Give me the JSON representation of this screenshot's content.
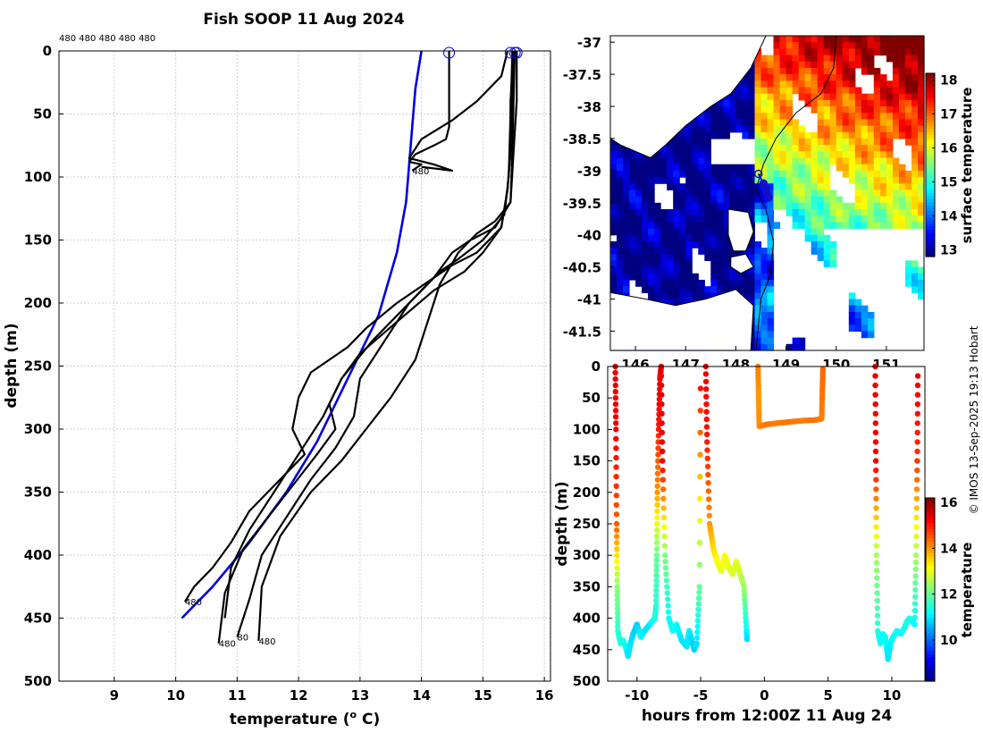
{
  "title": "Fish SOOP 11 Aug 2024",
  "credit": "© IMOS 13-Sep-2025 19:13 Hobart",
  "colors": {
    "profile": "#000000",
    "climatology": "#0000dd",
    "grid": "#d0d0d0",
    "land": "#ffffff",
    "track": "#1010cc"
  },
  "chart_data": [
    {
      "type": "line",
      "name": "temperature-profiles",
      "xlabel": "temperature (° C)",
      "xlabel_main": "temperature (",
      "xlabel_sup": "o",
      "xlabel_tail": " C)",
      "ylabel": "depth (m)",
      "xlim": [
        8.1,
        16.1
      ],
      "ylim": [
        500,
        0
      ],
      "xticks": [
        9,
        10,
        11,
        12,
        13,
        14,
        15,
        16
      ],
      "yticks": [
        0,
        50,
        100,
        150,
        200,
        250,
        300,
        350,
        400,
        450,
        500
      ],
      "top_label": "480 480 480 480 480",
      "drop_labels": [
        {
          "text": "480",
          "t": 13.85,
          "d": 95
        },
        {
          "text": "480",
          "t": 10.15,
          "d": 437
        },
        {
          "text": "480",
          "t": 10.7,
          "d": 470
        },
        {
          "text": "80",
          "t": 11.0,
          "d": 465
        },
        {
          "text": "480",
          "t": 11.35,
          "d": 468
        }
      ],
      "surface_markers": [
        14.45,
        15.45,
        15.52,
        15.55
      ],
      "series": [
        {
          "name": "climatology",
          "t": [
            14.0,
            13.9,
            13.85,
            13.8,
            13.75,
            13.6,
            13.3,
            12.8,
            12.3,
            11.8,
            11.2,
            10.6,
            10.1
          ],
          "d": [
            0,
            30,
            60,
            90,
            120,
            160,
            210,
            260,
            310,
            350,
            390,
            425,
            450
          ]
        },
        {
          "name": "drop-1",
          "t": [
            14.45,
            14.45,
            14.45,
            14.45,
            14.4,
            14.2,
            13.9,
            13.8,
            14.0,
            13.85
          ],
          "d": [
            0,
            20,
            40,
            60,
            70,
            75,
            82,
            88,
            90,
            95
          ]
        },
        {
          "name": "drop-2",
          "t": [
            15.4,
            15.3,
            14.9,
            14.5,
            14.0,
            13.8,
            14.2,
            14.5,
            14.0
          ],
          "d": [
            0,
            20,
            40,
            55,
            70,
            85,
            90,
            95,
            92
          ]
        },
        {
          "name": "drop-3",
          "t": [
            15.5,
            15.45,
            15.45,
            15.4,
            15.3,
            14.9,
            14.5,
            14.2,
            13.6,
            13.1,
            12.8,
            12.2,
            12.0,
            11.9,
            12.1,
            11.6,
            11.2,
            10.9,
            10.6,
            10.3,
            10.15
          ],
          "d": [
            0,
            40,
            80,
            110,
            140,
            160,
            170,
            180,
            200,
            220,
            235,
            255,
            275,
            300,
            320,
            345,
            365,
            390,
            410,
            425,
            437
          ]
        },
        {
          "name": "drop-4",
          "t": [
            15.5,
            15.48,
            15.45,
            15.4,
            15.3,
            15.0,
            14.7,
            14.2,
            13.6,
            13.0,
            12.7,
            12.5,
            12.6,
            12.3,
            11.9,
            11.5,
            11.1,
            10.8,
            10.7
          ],
          "d": [
            0,
            40,
            80,
            110,
            140,
            160,
            175,
            190,
            215,
            240,
            260,
            280,
            300,
            320,
            345,
            370,
            395,
            430,
            470
          ]
        },
        {
          "name": "drop-5",
          "t": [
            15.52,
            15.5,
            15.48,
            15.45,
            15.2,
            14.8,
            14.5,
            14.2,
            13.8,
            13.4,
            13.0,
            12.9,
            12.6,
            12.2,
            11.8,
            11.4,
            11.2,
            11.0
          ],
          "d": [
            0,
            40,
            80,
            120,
            140,
            150,
            160,
            180,
            200,
            230,
            260,
            290,
            315,
            340,
            370,
            400,
            435,
            465
          ]
        },
        {
          "name": "drop-6",
          "t": [
            15.55,
            15.55,
            15.5,
            15.45,
            15.2,
            14.9,
            14.6,
            14.3,
            14.1,
            13.9,
            13.5,
            13.1,
            12.7,
            12.2,
            11.7,
            11.4,
            11.35
          ],
          "d": [
            0,
            40,
            80,
            120,
            135,
            145,
            160,
            185,
            215,
            245,
            275,
            300,
            325,
            350,
            385,
            425,
            468
          ]
        },
        {
          "name": "drop-7",
          "t": [
            15.48,
            15.45,
            15.42,
            15.35,
            15.0,
            14.6,
            14.3,
            13.8,
            13.2,
            12.7,
            12.4,
            12.0,
            11.6,
            11.2,
            10.9,
            10.8
          ],
          "d": [
            0,
            50,
            100,
            130,
            150,
            165,
            175,
            200,
            230,
            260,
            290,
            320,
            350,
            380,
            410,
            450
          ]
        }
      ]
    },
    {
      "type": "heatmap",
      "name": "surface-temperature-map",
      "xticks": [
        "146",
        "147",
        "148",
        "149",
        "150",
        "151"
      ],
      "xtick_values": [
        146,
        147,
        148,
        149,
        150,
        151
      ],
      "yticks": [
        "-37",
        "-37.5",
        "-38",
        "-38.5",
        "-39",
        "-39.5",
        "-40",
        "-40.5",
        "-41",
        "-41.5"
      ],
      "ytick_values": [
        -37,
        -37.5,
        -38,
        -38.5,
        -39,
        -39.5,
        -40,
        -40.5,
        -41,
        -41.5
      ],
      "xlim": [
        145.5,
        151.75
      ],
      "ylim": [
        -41.8,
        -36.9
      ],
      "colorbar_label": "surface temperature",
      "colorbar_range": [
        12.8,
        18.2
      ],
      "colorbar_ticks": [
        "13",
        "14",
        "15",
        "16",
        "17",
        "18"
      ],
      "colorbar_tick_values": [
        13,
        14,
        15,
        16,
        17,
        18
      ],
      "track": {
        "lon": [
          148.45,
          148.55,
          148.6,
          148.62,
          148.65
        ],
        "lat": [
          -39.05,
          -39.2,
          -39.28,
          -39.35,
          -39.42
        ]
      }
    },
    {
      "type": "scatter",
      "name": "depth-time-section",
      "xlabel": "hours from 12:00Z 11 Aug 24",
      "ylabel": "depth (m)",
      "xlim": [
        -12.3,
        12.6
      ],
      "ylim": [
        500,
        0
      ],
      "xticks": [
        -10,
        -5,
        0,
        5,
        10
      ],
      "yticks": [
        0,
        50,
        100,
        150,
        200,
        250,
        300,
        350,
        400,
        450,
        500
      ],
      "colorbar_label": "temperature",
      "colorbar_range": [
        8.2,
        16.2
      ],
      "colorbar_ticks": [
        "10",
        "12",
        "14",
        "16"
      ],
      "colorbar_tick_values": [
        10,
        12,
        14,
        16
      ],
      "profiles": [
        {
          "h": [
            -11.7,
            -11.65,
            -11.6,
            -11.55,
            -11.5,
            -11.3,
            -11.1,
            -10.9,
            -10.7,
            -10.5,
            -10.3,
            -10.0,
            -9.7,
            -9.4,
            -9.2,
            -9.0,
            -8.8,
            -8.6,
            -8.5
          ],
          "d": [
            0,
            100,
            250,
            350,
            420,
            440,
            435,
            445,
            460,
            440,
            425,
            410,
            430,
            420,
            415,
            410,
            405,
            400,
            380
          ],
          "t": [
            15.4,
            15.3,
            14.5,
            12.3,
            11.6,
            11.5,
            11.4,
            11.3,
            11.0,
            11.0,
            10.9,
            10.8,
            11.2,
            11.0,
            11.0,
            11.0,
            11.2,
            11.4,
            11.5
          ]
        },
        {
          "h": [
            -8.5,
            -8.45,
            -8.4,
            -8.3,
            -8.2,
            -8.1
          ],
          "d": [
            380,
            300,
            200,
            100,
            20,
            0
          ],
          "t": [
            11.5,
            12.0,
            14.0,
            15.0,
            15.3,
            15.4
          ]
        },
        {
          "h": [
            -8.1,
            -8.0,
            -7.8,
            -7.5,
            -7.2,
            -6.9,
            -6.5,
            -6.1,
            -5.9,
            -5.7,
            -5.5,
            -5.3,
            -5.1,
            -5.0
          ],
          "d": [
            0,
            150,
            300,
            400,
            420,
            410,
            435,
            445,
            420,
            435,
            450,
            440,
            350,
            0
          ],
          "t": [
            15.4,
            15.3,
            12.2,
            11.2,
            11.3,
            11.2,
            11.0,
            11.0,
            11.1,
            10.9,
            10.8,
            11.0,
            12.0,
            15.4
          ]
        },
        {
          "h": [
            -4.6,
            -4.5,
            -4.3,
            -4.0,
            -3.7,
            -3.4,
            -3.1,
            -2.8,
            -2.5,
            -2.2,
            -1.9,
            -1.6,
            -1.4,
            -1.35
          ],
          "d": [
            0,
            120,
            250,
            290,
            310,
            325,
            300,
            320,
            330,
            310,
            330,
            350,
            420,
            435
          ],
          "t": [
            15.4,
            15.0,
            14.0,
            13.5,
            13.2,
            13.0,
            13.2,
            13.0,
            12.9,
            13.0,
            12.8,
            12.4,
            11.2,
            10.9
          ]
        },
        {
          "h": [
            -0.5,
            -0.45,
            -0.4,
            0.2,
            1.0,
            2.0,
            3.0,
            4.0,
            4.5,
            4.55,
            4.6
          ],
          "d": [
            0,
            50,
            95,
            92,
            90,
            88,
            86,
            85,
            83,
            40,
            0
          ],
          "t": [
            14.2,
            14.0,
            14.1,
            14.3,
            14.2,
            14.3,
            14.2,
            14.3,
            14.2,
            14.3,
            14.4
          ]
        },
        {
          "h": [
            8.7,
            8.75,
            8.8,
            8.9,
            9.1,
            9.3,
            9.5,
            9.7,
            9.9,
            10.1,
            10.4,
            10.7,
            11.0,
            11.2,
            11.4,
            11.6,
            11.8,
            11.9,
            12.0,
            12.05
          ],
          "d": [
            0,
            150,
            300,
            420,
            440,
            425,
            430,
            465,
            440,
            430,
            420,
            425,
            415,
            405,
            400,
            405,
            410,
            300,
            150,
            0
          ],
          "t": [
            15.4,
            15.3,
            12.5,
            11.5,
            11.3,
            11.2,
            11.3,
            11.0,
            11.1,
            11.2,
            11.3,
            11.2,
            11.3,
            11.4,
            11.4,
            11.4,
            11.2,
            12.5,
            14.8,
            15.4
          ]
        }
      ]
    }
  ]
}
